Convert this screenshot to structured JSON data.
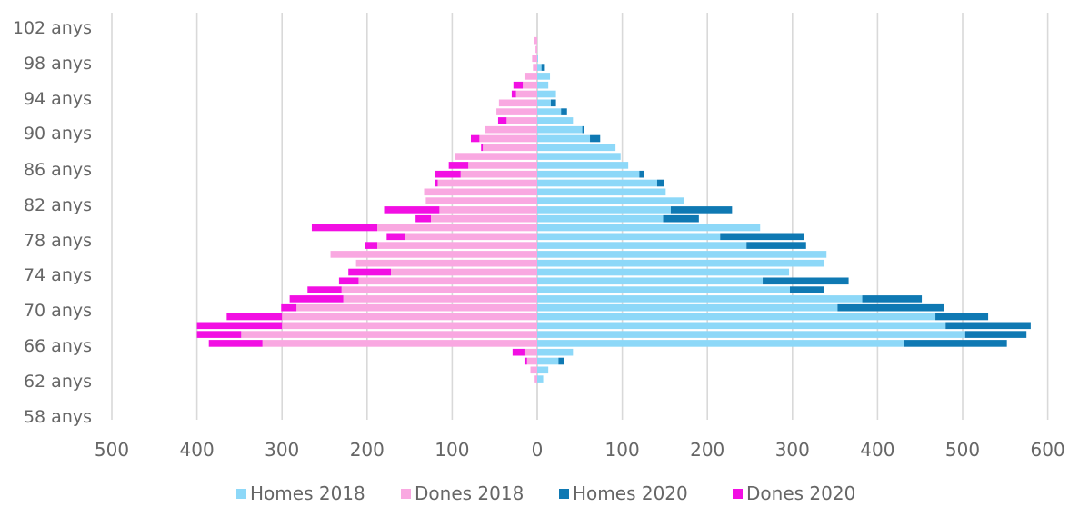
{
  "chart_data": {
    "type": "bar",
    "orientation": "horizontal",
    "stacked": true,
    "title": "",
    "xlabel": "",
    "ylabel": "",
    "xlim": [
      -500,
      600
    ],
    "x_tick_values": [
      -500,
      -400,
      -300,
      -200,
      -100,
      0,
      100,
      200,
      300,
      400,
      500,
      600
    ],
    "x_tick_labels": [
      "500",
      "400",
      "300",
      "200",
      "100",
      "0",
      "100",
      "200",
      "300",
      "400",
      "500",
      "600"
    ],
    "y_tick_labels": [
      "102 anys",
      "98 anys",
      "94 anys",
      "90 anys",
      "86 anys",
      "82 anys",
      "78 anys",
      "74 anys",
      "70 anys",
      "66 anys",
      "62 anys",
      "58 anys"
    ],
    "grid": "vertical",
    "legend_position": "bottom",
    "categories": [
      100,
      99,
      98,
      97,
      96,
      95,
      94,
      93,
      92,
      91,
      90,
      89,
      88,
      87,
      86,
      85,
      84,
      83,
      82,
      81,
      80,
      79,
      78,
      77,
      76,
      75,
      74,
      73,
      72,
      71,
      70,
      69,
      68,
      67,
      66,
      65,
      64,
      63,
      62,
      61,
      60
    ],
    "series": [
      {
        "name": "Homes 2018",
        "color": "#8DD8F8",
        "values": [
          0,
          0,
          0,
          1,
          5,
          15,
          13,
          22,
          16,
          28,
          42,
          53,
          62,
          92,
          98,
          107,
          120,
          141,
          151,
          173,
          157,
          148,
          262,
          215,
          246,
          340,
          337,
          296,
          265,
          297,
          382,
          353,
          468,
          480,
          503,
          431,
          42,
          25,
          13,
          7,
          0
        ]
      },
      {
        "name": "Dones 2018",
        "values": [
          0,
          -4,
          -2,
          -6,
          -5,
          -15,
          -17,
          -25,
          -45,
          -48,
          -36,
          -61,
          -68,
          -64,
          -97,
          -81,
          -90,
          -117,
          -133,
          -131,
          -115,
          -125,
          -188,
          -155,
          -188,
          -243,
          -213,
          -172,
          -210,
          -230,
          -228,
          -283,
          -300,
          -300,
          -348,
          -323,
          -15,
          -12,
          -8,
          -3,
          0
        ],
        "color": "#F9A8E1"
      },
      {
        "name": "Homes 2020",
        "color": "#0F79B3",
        "values": [
          0,
          0,
          0,
          0,
          4,
          0,
          0,
          0,
          6,
          7,
          0,
          2,
          12,
          0,
          0,
          0,
          5,
          8,
          0,
          0,
          72,
          42,
          0,
          99,
          70,
          0,
          0,
          0,
          101,
          40,
          70,
          125,
          62,
          100,
          72,
          121,
          0,
          7,
          0,
          0,
          0
        ]
      },
      {
        "name": "Dones 2020",
        "color": "#F20FE3",
        "values": [
          0,
          0,
          0,
          0,
          0,
          0,
          -11,
          -5,
          0,
          0,
          -10,
          0,
          -10,
          -2,
          0,
          -23,
          -30,
          -3,
          0,
          0,
          -65,
          -18,
          -77,
          -22,
          -14,
          0,
          0,
          -50,
          -23,
          -40,
          -63,
          -18,
          -65,
          -100,
          -52,
          -63,
          -14,
          -3,
          0,
          0,
          0
        ]
      }
    ]
  }
}
